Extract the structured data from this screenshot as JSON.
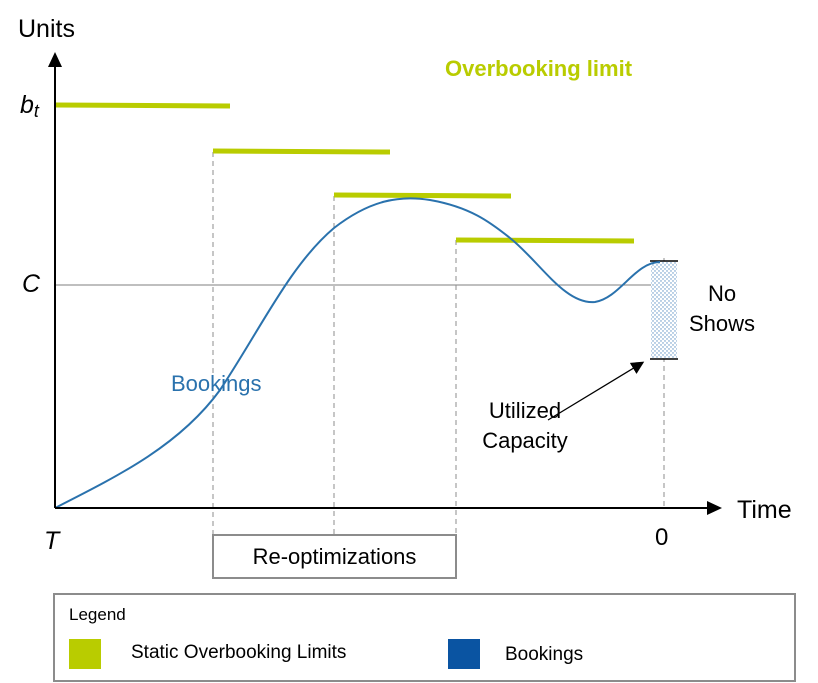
{
  "axes": {
    "y_label": "Units",
    "x_label": "Time",
    "y_tick_b_main": "b",
    "y_tick_b_sub": "t",
    "y_tick_c": "C",
    "x_tick_start": "T",
    "x_tick_end": "0"
  },
  "annotations": {
    "overbooking_limit": "Overbooking limit",
    "bookings": "Bookings",
    "no_shows_line1": "No",
    "no_shows_line2": "Shows",
    "utilized_line1": "Utilized",
    "utilized_line2": "Capacity",
    "reoptimizations": "Re-optimizations"
  },
  "legend": {
    "title": "Legend",
    "items": [
      {
        "label": "Static Overbooking Limits",
        "color": "#b9cc00"
      },
      {
        "label": "Bookings",
        "color": "#0a54a2"
      }
    ]
  },
  "colors": {
    "limit": "#b9cc00",
    "bookings_curve": "#2a72ad",
    "bookings_text": "#2a72ad",
    "overbooking_text": "#b9cc00",
    "axis": "#000000",
    "guide": "#7f7f7f"
  }
}
